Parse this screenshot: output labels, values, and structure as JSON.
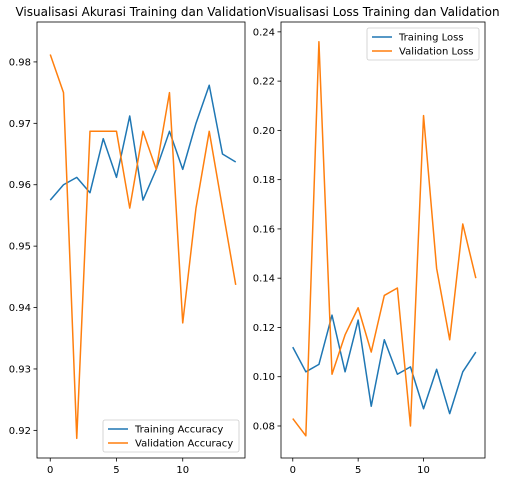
{
  "chart_data": [
    {
      "type": "line",
      "title": "Visualisasi Akurasi Training dan Validation",
      "xlabel": "",
      "ylabel": "",
      "xlim": [
        -1,
        14.7
      ],
      "ylim": [
        0.9155,
        0.9865
      ],
      "xticks": [
        0,
        5,
        10
      ],
      "yticks": [
        0.92,
        0.93,
        0.94,
        0.95,
        0.96,
        0.97,
        0.98
      ],
      "x": [
        0,
        1,
        2,
        3,
        4,
        5,
        6,
        7,
        8,
        9,
        10,
        11,
        12,
        13,
        14
      ],
      "legend_position": "lower-right",
      "grid": false,
      "series": [
        {
          "name": "Training Accuracy",
          "color": "#1f77b4",
          "values": [
            0.9575,
            0.96,
            0.9612,
            0.9587,
            0.9675,
            0.9612,
            0.9712,
            0.9575,
            0.9625,
            0.9687,
            0.9625,
            0.97,
            0.9762,
            0.965,
            0.9637
          ]
        },
        {
          "name": "Validation Accuracy",
          "color": "#ff7f0e",
          "values": [
            0.9812,
            0.975,
            0.9187,
            0.9687,
            0.9687,
            0.9687,
            0.9562,
            0.9687,
            0.9625,
            0.975,
            0.9375,
            0.9562,
            0.9687,
            0.9562,
            0.9437
          ]
        }
      ]
    },
    {
      "type": "line",
      "title": "Visualisasi Loss Training dan Validation",
      "xlabel": "",
      "ylabel": "",
      "xlim": [
        -0.9,
        14.7
      ],
      "ylim": [
        0.067,
        0.244
      ],
      "xticks": [
        0,
        5,
        10
      ],
      "yticks": [
        0.08,
        0.1,
        0.12,
        0.14,
        0.16,
        0.18,
        0.2,
        0.22,
        0.24
      ],
      "x": [
        0,
        1,
        2,
        3,
        4,
        5,
        6,
        7,
        8,
        9,
        10,
        11,
        12,
        13,
        14
      ],
      "legend_position": "upper-right",
      "grid": false,
      "series": [
        {
          "name": "Training Loss",
          "color": "#1f77b4",
          "values": [
            0.112,
            0.102,
            0.105,
            0.125,
            0.102,
            0.123,
            0.088,
            0.115,
            0.101,
            0.104,
            0.087,
            0.103,
            0.085,
            0.102,
            0.11
          ]
        },
        {
          "name": "Validation Loss",
          "color": "#ff7f0e",
          "values": [
            0.083,
            0.076,
            0.236,
            0.101,
            0.117,
            0.128,
            0.11,
            0.133,
            0.136,
            0.08,
            0.206,
            0.144,
            0.115,
            0.162,
            0.14
          ]
        }
      ]
    }
  ]
}
